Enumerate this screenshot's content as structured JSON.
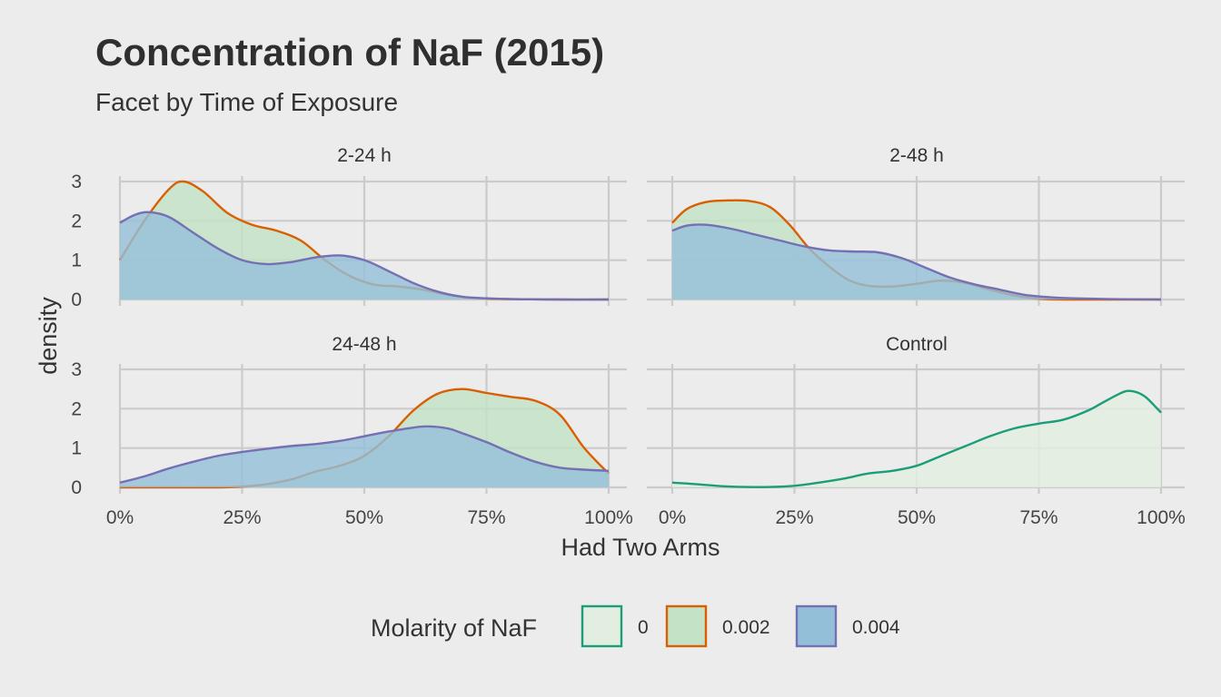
{
  "chart_data": {
    "type": "area",
    "subtype": "faceted density",
    "title": "Concentration of NaF (2015)",
    "subtitle": "Facet by Time of Exposure",
    "xlabel": "Had Two Arms",
    "ylabel": "density",
    "xlim": [
      0,
      1
    ],
    "ylim": [
      0,
      3
    ],
    "x_ticks": [
      0,
      0.25,
      0.5,
      0.75,
      1
    ],
    "x_tick_labels": [
      "0%",
      "25%",
      "50%",
      "75%",
      "100%"
    ],
    "y_ticks": [
      0,
      1,
      2,
      3
    ],
    "y_tick_labels": [
      "0",
      "1",
      "2",
      "3"
    ],
    "grid": true,
    "legend": {
      "title": "Molarity of NaF",
      "position": "bottom",
      "entries": [
        {
          "label": "0",
          "fill": "#e2efe0",
          "stroke": "#1b9e77"
        },
        {
          "label": "0.002",
          "fill": "#c3e2c6",
          "stroke": "#d95f02"
        },
        {
          "label": "0.004",
          "fill": "#93bfd9",
          "stroke": "#7570b3"
        }
      ]
    },
    "panels": [
      {
        "label": "2-24 h",
        "series": [
          {
            "name": "0.002",
            "x": [
              0,
              0.05,
              0.1,
              0.13,
              0.17,
              0.22,
              0.27,
              0.32,
              0.37,
              0.42,
              0.47,
              0.52,
              0.57,
              0.62,
              0.67,
              0.72,
              0.8,
              0.9,
              1.0
            ],
            "y": [
              1.0,
              2.0,
              2.8,
              3.0,
              2.75,
              2.2,
              1.9,
              1.75,
              1.5,
              1.0,
              0.6,
              0.38,
              0.33,
              0.25,
              0.12,
              0.04,
              0.01,
              0.0,
              0.0
            ]
          },
          {
            "name": "0.004",
            "x": [
              0,
              0.03,
              0.06,
              0.1,
              0.15,
              0.2,
              0.25,
              0.3,
              0.35,
              0.4,
              0.45,
              0.5,
              0.55,
              0.6,
              0.65,
              0.7,
              0.75,
              0.8,
              0.9,
              1.0
            ],
            "y": [
              1.95,
              2.15,
              2.22,
              2.1,
              1.7,
              1.3,
              1.0,
              0.9,
              0.95,
              1.07,
              1.12,
              1.0,
              0.72,
              0.42,
              0.2,
              0.07,
              0.03,
              0.01,
              0.0,
              0.0
            ]
          }
        ]
      },
      {
        "label": "2-48 h",
        "series": [
          {
            "name": "0.002",
            "x": [
              0,
              0.03,
              0.07,
              0.12,
              0.16,
              0.2,
              0.24,
              0.28,
              0.32,
              0.36,
              0.4,
              0.45,
              0.5,
              0.55,
              0.6,
              0.65,
              0.7,
              0.75,
              0.8,
              0.9,
              1.0
            ],
            "y": [
              1.95,
              2.3,
              2.48,
              2.52,
              2.5,
              2.35,
              1.9,
              1.3,
              0.85,
              0.5,
              0.35,
              0.33,
              0.4,
              0.48,
              0.42,
              0.25,
              0.1,
              0.02,
              0.0,
              0.0,
              0.0
            ]
          },
          {
            "name": "0.004",
            "x": [
              0,
              0.03,
              0.07,
              0.12,
              0.17,
              0.22,
              0.27,
              0.32,
              0.37,
              0.42,
              0.47,
              0.52,
              0.57,
              0.62,
              0.67,
              0.72,
              0.77,
              0.82,
              0.9,
              1.0
            ],
            "y": [
              1.75,
              1.88,
              1.9,
              1.8,
              1.65,
              1.5,
              1.35,
              1.25,
              1.22,
              1.2,
              1.05,
              0.8,
              0.55,
              0.38,
              0.25,
              0.12,
              0.06,
              0.03,
              0.01,
              0.0
            ]
          }
        ]
      },
      {
        "label": "24-48 h",
        "series": [
          {
            "name": "0.002",
            "x": [
              0,
              0.1,
              0.2,
              0.25,
              0.3,
              0.35,
              0.4,
              0.45,
              0.5,
              0.55,
              0.6,
              0.65,
              0.7,
              0.75,
              0.8,
              0.85,
              0.9,
              0.95,
              1.0
            ],
            "y": [
              0.0,
              0.0,
              0.0,
              0.02,
              0.08,
              0.2,
              0.4,
              0.55,
              0.8,
              1.3,
              1.95,
              2.38,
              2.5,
              2.4,
              2.3,
              2.2,
              1.85,
              1.0,
              0.35
            ]
          },
          {
            "name": "0.004",
            "x": [
              0,
              0.05,
              0.1,
              0.15,
              0.2,
              0.25,
              0.3,
              0.35,
              0.4,
              0.45,
              0.5,
              0.55,
              0.6,
              0.63,
              0.67,
              0.7,
              0.75,
              0.8,
              0.85,
              0.9,
              0.95,
              1.0
            ],
            "y": [
              0.12,
              0.28,
              0.48,
              0.65,
              0.8,
              0.9,
              0.98,
              1.05,
              1.1,
              1.18,
              1.3,
              1.42,
              1.52,
              1.55,
              1.5,
              1.38,
              1.15,
              0.88,
              0.65,
              0.5,
              0.45,
              0.42
            ]
          }
        ]
      },
      {
        "label": "Control",
        "series": [
          {
            "name": "0",
            "x": [
              0,
              0.05,
              0.1,
              0.15,
              0.2,
              0.25,
              0.3,
              0.35,
              0.4,
              0.45,
              0.5,
              0.55,
              0.6,
              0.65,
              0.7,
              0.75,
              0.8,
              0.85,
              0.88,
              0.91,
              0.93,
              0.95,
              0.97,
              1.0
            ],
            "y": [
              0.12,
              0.08,
              0.03,
              0.01,
              0.01,
              0.04,
              0.12,
              0.22,
              0.35,
              0.42,
              0.55,
              0.8,
              1.05,
              1.3,
              1.5,
              1.62,
              1.72,
              1.95,
              2.15,
              2.35,
              2.45,
              2.42,
              2.28,
              1.9
            ]
          }
        ]
      }
    ]
  }
}
